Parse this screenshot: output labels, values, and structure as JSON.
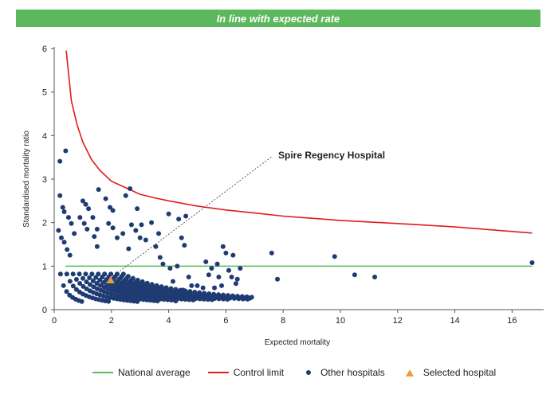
{
  "banner": {
    "text": "In line with expected rate",
    "color": "#5cb85c"
  },
  "chart_data": {
    "type": "scatter",
    "xlabel": "Expected mortality",
    "ylabel": "Standardised mortality ratio",
    "xlim": [
      0,
      17
    ],
    "ylim": [
      0,
      6
    ],
    "xticks": [
      "0",
      "2",
      "4",
      "6",
      "8",
      "10",
      "12",
      "14",
      "16"
    ],
    "yticks": [
      "0",
      "1",
      "2",
      "3",
      "4",
      "5",
      "6"
    ],
    "grid": false,
    "legend_position": "bottom",
    "annotation": {
      "text": "Spire Regency Hospital",
      "x": 7.7,
      "y": 3.55
    },
    "national_average": {
      "name": "National average",
      "y": 1,
      "x_range": [
        0.4,
        16.7
      ],
      "color": "#5cb85c"
    },
    "control_limit": {
      "name": "Control limit",
      "color": "#e31a1c",
      "points": [
        [
          0.42,
          5.95
        ],
        [
          0.6,
          4.8
        ],
        [
          0.8,
          4.25
        ],
        [
          1.0,
          3.85
        ],
        [
          1.3,
          3.45
        ],
        [
          1.6,
          3.2
        ],
        [
          2.0,
          2.95
        ],
        [
          2.5,
          2.8
        ],
        [
          3.0,
          2.65
        ],
        [
          3.5,
          2.57
        ],
        [
          4.0,
          2.5
        ],
        [
          5.0,
          2.38
        ],
        [
          6.0,
          2.29
        ],
        [
          7.0,
          2.22
        ],
        [
          8.0,
          2.15
        ],
        [
          9.0,
          2.1
        ],
        [
          10.0,
          2.05
        ],
        [
          12.0,
          1.98
        ],
        [
          14.0,
          1.9
        ],
        [
          16.7,
          1.76
        ]
      ]
    },
    "other_hospitals": {
      "name": "Other hospitals",
      "color": "#1f3b73",
      "points": [
        [
          0.15,
          1.82
        ],
        [
          0.2,
          3.41
        ],
        [
          0.2,
          2.62
        ],
        [
          0.25,
          1.65
        ],
        [
          0.3,
          2.35
        ],
        [
          0.35,
          2.25
        ],
        [
          0.35,
          1.55
        ],
        [
          0.4,
          3.65
        ],
        [
          0.45,
          1.38
        ],
        [
          0.5,
          2.12
        ],
        [
          0.55,
          1.25
        ],
        [
          0.6,
          1.98
        ],
        [
          0.7,
          1.75
        ],
        [
          0.9,
          2.12
        ],
        [
          1.0,
          2.5
        ],
        [
          1.05,
          1.98
        ],
        [
          1.1,
          2.42
        ],
        [
          1.15,
          1.85
        ],
        [
          1.2,
          2.32
        ],
        [
          1.35,
          2.12
        ],
        [
          1.4,
          1.68
        ],
        [
          1.5,
          1.85
        ],
        [
          1.5,
          1.45
        ],
        [
          1.55,
          2.76
        ],
        [
          1.8,
          2.55
        ],
        [
          1.9,
          1.98
        ],
        [
          1.95,
          2.35
        ],
        [
          2.05,
          2.28
        ],
        [
          2.05,
          1.88
        ],
        [
          2.2,
          1.65
        ],
        [
          2.4,
          1.75
        ],
        [
          2.5,
          2.62
        ],
        [
          2.6,
          1.4
        ],
        [
          2.65,
          2.78
        ],
        [
          2.7,
          1.95
        ],
        [
          2.85,
          1.82
        ],
        [
          2.9,
          2.32
        ],
        [
          3.0,
          1.65
        ],
        [
          3.05,
          1.95
        ],
        [
          3.2,
          1.6
        ],
        [
          3.4,
          2.0
        ],
        [
          3.55,
          1.45
        ],
        [
          3.65,
          1.75
        ],
        [
          3.7,
          1.2
        ],
        [
          3.8,
          1.05
        ],
        [
          4.0,
          2.2
        ],
        [
          4.05,
          0.95
        ],
        [
          4.15,
          0.65
        ],
        [
          4.25,
          0.2
        ],
        [
          4.3,
          1.0
        ],
        [
          4.35,
          2.08
        ],
        [
          4.4,
          0.35
        ],
        [
          4.45,
          1.65
        ],
        [
          4.5,
          0.45
        ],
        [
          4.55,
          1.48
        ],
        [
          4.6,
          2.15
        ],
        [
          4.7,
          0.75
        ],
        [
          4.8,
          0.55
        ],
        [
          5.0,
          0.55
        ],
        [
          5.1,
          0.33
        ],
        [
          5.2,
          0.5
        ],
        [
          5.3,
          1.1
        ],
        [
          5.4,
          0.8
        ],
        [
          5.5,
          0.95
        ],
        [
          5.6,
          0.5
        ],
        [
          5.7,
          1.05
        ],
        [
          5.75,
          0.75
        ],
        [
          5.85,
          0.55
        ],
        [
          5.9,
          1.45
        ],
        [
          6.0,
          1.3
        ],
        [
          6.1,
          0.9
        ],
        [
          6.2,
          0.75
        ],
        [
          6.25,
          1.25
        ],
        [
          6.35,
          0.6
        ],
        [
          6.4,
          0.7
        ],
        [
          6.5,
          0.95
        ],
        [
          7.6,
          1.3
        ],
        [
          7.8,
          0.7
        ],
        [
          9.8,
          1.22
        ],
        [
          10.5,
          0.8
        ],
        [
          11.2,
          0.75
        ],
        [
          16.7,
          1.08
        ]
      ]
    },
    "selected_hospital": {
      "name": "Selected hospital",
      "color": "#ee9a3a",
      "x": 1.97,
      "y": 0.68
    }
  },
  "legend": [
    {
      "label": "National average",
      "kind": "line",
      "color": "#5cb85c"
    },
    {
      "label": "Control limit",
      "kind": "line",
      "color": "#e31a1c"
    },
    {
      "label": "Other hospitals",
      "kind": "dot",
      "color": "#1f3b73"
    },
    {
      "label": "Selected hospital",
      "kind": "triangle",
      "color": "#ee9a3a"
    }
  ]
}
